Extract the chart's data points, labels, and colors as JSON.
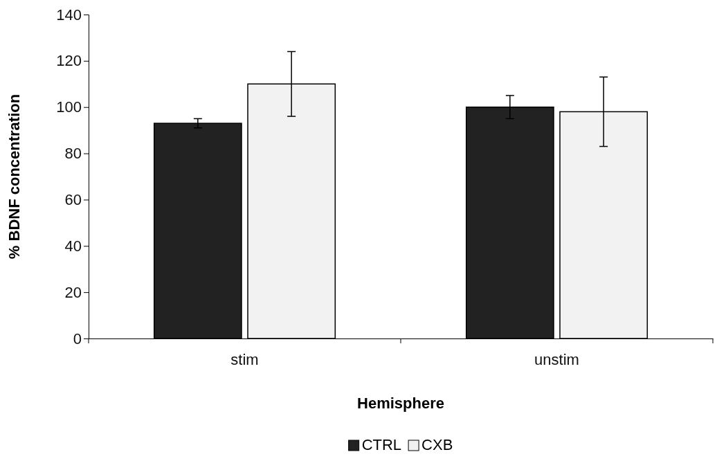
{
  "chart_data": {
    "type": "bar",
    "xlabel": "Hemisphere",
    "ylabel": "% BDNF concentration",
    "categories": [
      "stim",
      "unstim"
    ],
    "series": [
      {
        "name": "CTRL",
        "color": "#222222",
        "values": [
          93,
          100
        ],
        "errors": [
          2,
          5
        ]
      },
      {
        "name": "CXB",
        "color": "#f2f2f2",
        "values": [
          110,
          98
        ],
        "errors": [
          14,
          15
        ]
      }
    ],
    "ylim": [
      0,
      140
    ],
    "yticks": [
      0,
      20,
      40,
      60,
      80,
      100,
      120,
      140
    ],
    "legend": "bottom"
  }
}
